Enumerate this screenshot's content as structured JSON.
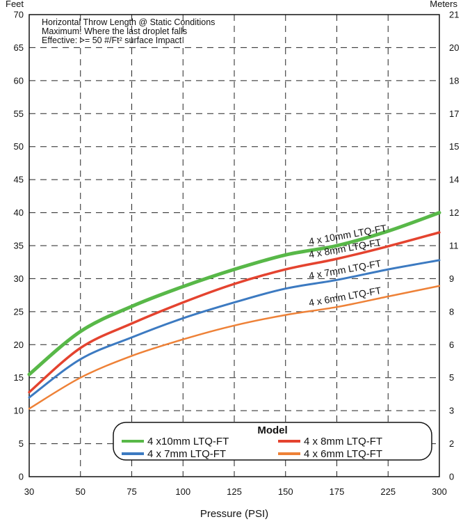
{
  "chart_data": {
    "type": "line",
    "xlabel": "Pressure (PSI)",
    "ylabel": "Feet",
    "y2label": "Meters",
    "xlim": [
      30,
      300
    ],
    "ylim": [
      0,
      70
    ],
    "x_ticks": [
      30,
      50,
      75,
      100,
      125,
      150,
      175,
      225,
      300
    ],
    "y_ticks": [
      0,
      5,
      10,
      15,
      20,
      25,
      30,
      35,
      40,
      45,
      50,
      55,
      60,
      65,
      70
    ],
    "y2_ticks": [
      0,
      2,
      3,
      5,
      6,
      8,
      9,
      11,
      12,
      14,
      15,
      17,
      18,
      20,
      21
    ],
    "grid": true,
    "notes": [
      "Horizontal Throw Length @ Static Conditions",
      "Maximum: Where the last droplet falls",
      "Effective: >= 50 #/Ft² surface Impact"
    ],
    "legend": {
      "title": "Model",
      "placement": "bottom-right"
    },
    "series": [
      {
        "name": "4 x10mm LTQ-FT",
        "curve_label": "4 x 10mm LTQ-FT",
        "color": "#58b848",
        "x": [
          30,
          50,
          75,
          100,
          125,
          150,
          175,
          225,
          300
        ],
        "y": [
          15.5,
          22.0,
          25.8,
          28.8,
          31.4,
          33.6,
          35.0,
          37.2,
          40.0
        ]
      },
      {
        "name": "4 x 8mm LTQ-FT",
        "curve_label": "4 x 8mm LTQ-FT",
        "color": "#e4432f",
        "x": [
          30,
          50,
          75,
          100,
          125,
          150,
          175,
          225,
          300
        ],
        "y": [
          12.8,
          19.5,
          23.2,
          26.4,
          29.2,
          31.4,
          33.0,
          34.9,
          37.0
        ]
      },
      {
        "name": "4 x 7mm LTQ-FT",
        "curve_label": "4 x 7mm LTQ-FT",
        "color": "#3c7ac1",
        "x": [
          30,
          50,
          75,
          100,
          125,
          150,
          175,
          225,
          300
        ],
        "y": [
          12.0,
          17.8,
          21.1,
          24.0,
          26.4,
          28.5,
          29.8,
          31.4,
          32.8
        ]
      },
      {
        "name": "4 x 6mm LTQ-FT",
        "curve_label": "4 x 6mm LTQ-FT",
        "color": "#ee8137",
        "x": [
          30,
          50,
          75,
          100,
          125,
          150,
          175,
          225,
          300
        ],
        "y": [
          10.3,
          15.0,
          18.3,
          20.8,
          22.9,
          24.5,
          25.7,
          27.3,
          28.9
        ]
      }
    ]
  }
}
